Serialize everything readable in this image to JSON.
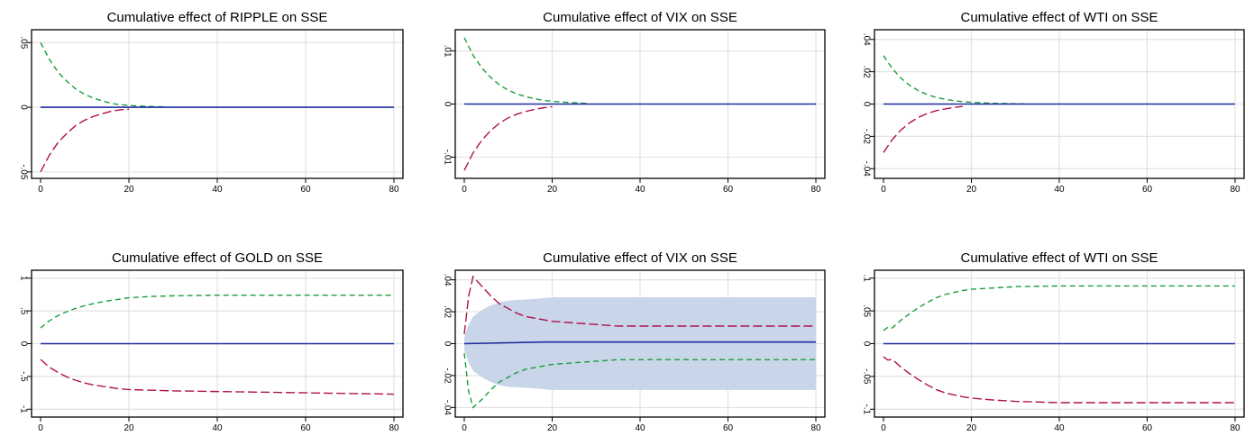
{
  "chart_data": [
    {
      "type": "line",
      "title": "Cumulative effect of RIPPLE on SSE",
      "xlabel": "",
      "ylabel": "",
      "xlim": [
        0,
        80
      ],
      "ylim": [
        -0.055,
        0.06
      ],
      "grid": true,
      "x_ticks": [
        0,
        20,
        40,
        60,
        80
      ],
      "x_tick_labels": [
        "0",
        "20",
        "40",
        "60",
        "80"
      ],
      "y_ticks": [
        -0.05,
        0,
        0.05
      ],
      "y_tick_labels": [
        "-.05",
        "0",
        ".05"
      ],
      "x": [
        0,
        2,
        4,
        6,
        8,
        10,
        12,
        14,
        16,
        18,
        20,
        22,
        24,
        26,
        28
      ],
      "series": [
        {
          "role": "upper",
          "color": "#1a9e3b",
          "dash": "6,4",
          "values": [
            0.05,
            0.037,
            0.027,
            0.02,
            0.014,
            0.01,
            0.007,
            0.005,
            0.003,
            0.002,
            0.0015,
            0.001,
            0.0008,
            0.0005,
            0.0003
          ]
        },
        {
          "role": "estimate",
          "color": "#1f2d9e",
          "dash": "",
          "x": [
            0,
            80
          ],
          "values": [
            0,
            0
          ]
        },
        {
          "role": "lower",
          "color": "#b01050",
          "dash": "10,4",
          "x": [
            0,
            2,
            4,
            6,
            8,
            10,
            12,
            14,
            16,
            18,
            20
          ],
          "values": [
            -0.05,
            -0.037,
            -0.027,
            -0.02,
            -0.014,
            -0.01,
            -0.007,
            -0.005,
            -0.003,
            -0.002,
            -0.0015
          ]
        }
      ]
    },
    {
      "type": "line",
      "title": "Cumulative effect of VIX on SSE",
      "xlabel": "",
      "ylabel": "",
      "xlim": [
        0,
        80
      ],
      "ylim": [
        -0.014,
        0.014
      ],
      "grid": true,
      "x_ticks": [
        0,
        20,
        40,
        60,
        80
      ],
      "x_tick_labels": [
        "0",
        "20",
        "40",
        "60",
        "80"
      ],
      "y_ticks": [
        -0.01,
        0,
        0.01
      ],
      "y_tick_labels": [
        "-.01",
        "0",
        ".01"
      ],
      "x": [
        0,
        2,
        4,
        6,
        8,
        10,
        12,
        14,
        16,
        18,
        20,
        22,
        24,
        26,
        28
      ],
      "series": [
        {
          "role": "upper",
          "color": "#1a9e3b",
          "dash": "6,4",
          "values": [
            0.0125,
            0.0092,
            0.0068,
            0.005,
            0.0036,
            0.0026,
            0.0019,
            0.0014,
            0.001,
            0.0007,
            0.0005,
            0.0004,
            0.0003,
            0.0002,
            0.0001
          ]
        },
        {
          "role": "estimate",
          "color": "#1f2d9e",
          "dash": "",
          "x": [
            0,
            80
          ],
          "values": [
            0,
            0
          ]
        },
        {
          "role": "lower",
          "color": "#b01050",
          "dash": "10,4",
          "x": [
            0,
            2,
            4,
            6,
            8,
            10,
            12,
            14,
            16,
            18,
            20
          ],
          "values": [
            -0.0125,
            -0.0092,
            -0.0068,
            -0.005,
            -0.0036,
            -0.0026,
            -0.0019,
            -0.0014,
            -0.001,
            -0.0007,
            -0.0005
          ]
        }
      ]
    },
    {
      "type": "line",
      "title": "Cumulative effect of WTI on SSE",
      "xlabel": "",
      "ylabel": "",
      "xlim": [
        0,
        80
      ],
      "ylim": [
        -0.046,
        0.046
      ],
      "grid": true,
      "x_ticks": [
        0,
        20,
        40,
        60,
        80
      ],
      "x_tick_labels": [
        "0",
        "20",
        "40",
        "60",
        "80"
      ],
      "y_ticks": [
        -0.04,
        -0.02,
        0,
        0.02,
        0.04
      ],
      "y_tick_labels": [
        "-.04",
        "-.02",
        "0",
        ".02",
        ".04"
      ],
      "x": [
        0,
        2,
        4,
        6,
        8,
        10,
        12,
        14,
        16,
        18,
        20,
        22,
        24,
        26,
        28,
        30,
        32
      ],
      "series": [
        {
          "role": "upper",
          "color": "#1a9e3b",
          "dash": "6,4",
          "values": [
            0.03,
            0.022,
            0.016,
            0.0115,
            0.0082,
            0.0058,
            0.0041,
            0.003,
            0.0021,
            0.0015,
            0.0011,
            0.0008,
            0.0006,
            0.0004,
            0.0003,
            0.0002,
            0.0001
          ]
        },
        {
          "role": "estimate",
          "color": "#1f2d9e",
          "dash": "",
          "x": [
            0,
            80
          ],
          "values": [
            0,
            0
          ]
        },
        {
          "role": "lower",
          "color": "#b01050",
          "dash": "10,4",
          "x": [
            0,
            2,
            4,
            6,
            8,
            10,
            12,
            14,
            16,
            18
          ],
          "values": [
            -0.03,
            -0.022,
            -0.016,
            -0.0115,
            -0.0082,
            -0.0058,
            -0.0041,
            -0.003,
            -0.0021,
            -0.0015
          ]
        }
      ]
    },
    {
      "type": "line",
      "title": "Cumulative effect of GOLD on SSE",
      "xlabel": "",
      "ylabel": "",
      "xlim": [
        0,
        80
      ],
      "ylim": [
        -1.12,
        1.12
      ],
      "grid": true,
      "x_ticks": [
        0,
        20,
        40,
        60,
        80
      ],
      "x_tick_labels": [
        "0",
        "20",
        "40",
        "60",
        "80"
      ],
      "y_ticks": [
        -1,
        -0.5,
        0,
        0.5,
        1
      ],
      "y_tick_labels": [
        "-1",
        "-.5",
        "0",
        ".5",
        "1"
      ],
      "x": [
        0,
        2,
        4,
        6,
        8,
        10,
        12,
        14,
        16,
        18,
        20,
        25,
        30,
        40,
        50,
        60,
        70,
        80
      ],
      "series": [
        {
          "role": "upper",
          "color": "#1a9e3b",
          "dash": "6,4",
          "values": [
            0.24,
            0.35,
            0.43,
            0.49,
            0.54,
            0.58,
            0.61,
            0.64,
            0.66,
            0.68,
            0.7,
            0.72,
            0.73,
            0.74,
            0.74,
            0.74,
            0.74,
            0.74
          ]
        },
        {
          "role": "estimate",
          "color": "#1f2d9e",
          "dash": "",
          "x": [
            0,
            80
          ],
          "values": [
            0,
            0
          ]
        },
        {
          "role": "lower",
          "color": "#b01050",
          "dash": "10,4",
          "values": [
            -0.24,
            -0.36,
            -0.44,
            -0.51,
            -0.56,
            -0.6,
            -0.63,
            -0.65,
            -0.67,
            -0.69,
            -0.7,
            -0.71,
            -0.72,
            -0.73,
            -0.74,
            -0.75,
            -0.76,
            -0.77
          ]
        }
      ]
    },
    {
      "type": "line",
      "title": "Cumulative effect of VIX on SSE",
      "xlabel": "",
      "ylabel": "",
      "xlim": [
        0,
        80
      ],
      "ylim": [
        -0.046,
        0.046
      ],
      "grid": true,
      "x_ticks": [
        0,
        20,
        40,
        60,
        80
      ],
      "x_tick_labels": [
        "0",
        "20",
        "40",
        "60",
        "80"
      ],
      "y_ticks": [
        -0.04,
        -0.02,
        0,
        0.02,
        0.04
      ],
      "y_tick_labels": [
        "-.04",
        "-.02",
        "0",
        ".02",
        ".04"
      ],
      "band": {
        "color": "#c9d5e8",
        "x": [
          0,
          1,
          2,
          4,
          6,
          8,
          10,
          13,
          16,
          20,
          25,
          30,
          40,
          50,
          60,
          70,
          80
        ],
        "upper": [
          0.004,
          0.012,
          0.017,
          0.021,
          0.024,
          0.026,
          0.027,
          0.0275,
          0.028,
          0.029,
          0.029,
          0.029,
          0.029,
          0.029,
          0.029,
          0.029,
          0.029
        ],
        "lower": [
          -0.004,
          -0.012,
          -0.017,
          -0.021,
          -0.024,
          -0.026,
          -0.027,
          -0.0275,
          -0.028,
          -0.029,
          -0.029,
          -0.029,
          -0.029,
          -0.029,
          -0.029,
          -0.029,
          -0.029
        ]
      },
      "x": [
        0,
        1,
        2,
        4,
        6,
        8,
        10,
        12,
        14,
        16,
        18,
        20,
        25,
        30,
        35,
        40,
        50,
        60,
        70,
        80
      ],
      "series": [
        {
          "role": "upper",
          "color": "#b01050",
          "dash": "10,4",
          "values": [
            0.006,
            0.03,
            0.042,
            0.036,
            0.03,
            0.025,
            0.022,
            0.019,
            0.017,
            0.016,
            0.015,
            0.014,
            0.013,
            0.012,
            0.011,
            0.011,
            0.011,
            0.011,
            0.011,
            0.011
          ]
        },
        {
          "role": "estimate",
          "color": "#1f2d9e",
          "dash": "",
          "x": [
            0,
            18,
            80
          ],
          "values": [
            0,
            0.001,
            0.001
          ]
        },
        {
          "role": "lower",
          "color": "#1a9e3b",
          "dash": "6,4",
          "values": [
            -0.006,
            -0.03,
            -0.04,
            -0.035,
            -0.029,
            -0.024,
            -0.021,
            -0.018,
            -0.016,
            -0.015,
            -0.014,
            -0.013,
            -0.012,
            -0.011,
            -0.01,
            -0.01,
            -0.01,
            -0.01,
            -0.01,
            -0.01
          ]
        }
      ]
    },
    {
      "type": "line",
      "title": "Cumulative effect of WTI on SSE",
      "xlabel": "",
      "ylabel": "",
      "xlim": [
        0,
        80
      ],
      "ylim": [
        -0.112,
        0.112
      ],
      "grid": true,
      "x_ticks": [
        0,
        20,
        40,
        60,
        80
      ],
      "x_tick_labels": [
        "0",
        "20",
        "40",
        "60",
        "80"
      ],
      "y_ticks": [
        -0.1,
        -0.05,
        0,
        0.05,
        0.1
      ],
      "y_tick_labels": [
        "-.1",
        "-.05",
        "0",
        ".05",
        ".1"
      ],
      "x": [
        0,
        1,
        2,
        4,
        6,
        8,
        10,
        12,
        14,
        16,
        18,
        20,
        25,
        30,
        40,
        50,
        60,
        70,
        80
      ],
      "series": [
        {
          "role": "upper",
          "color": "#1a9e3b",
          "dash": "6,4",
          "values": [
            0.02,
            0.025,
            0.024,
            0.036,
            0.046,
            0.055,
            0.063,
            0.07,
            0.075,
            0.078,
            0.081,
            0.083,
            0.085,
            0.087,
            0.088,
            0.088,
            0.088,
            0.088,
            0.088
          ]
        },
        {
          "role": "estimate",
          "color": "#1f2d9e",
          "dash": "",
          "x": [
            0,
            80
          ],
          "values": [
            0,
            0
          ]
        },
        {
          "role": "lower",
          "color": "#b01050",
          "dash": "10,4",
          "values": [
            -0.02,
            -0.025,
            -0.024,
            -0.036,
            -0.046,
            -0.055,
            -0.063,
            -0.07,
            -0.075,
            -0.078,
            -0.081,
            -0.083,
            -0.086,
            -0.088,
            -0.09,
            -0.09,
            -0.09,
            -0.09,
            -0.09
          ]
        }
      ]
    }
  ]
}
